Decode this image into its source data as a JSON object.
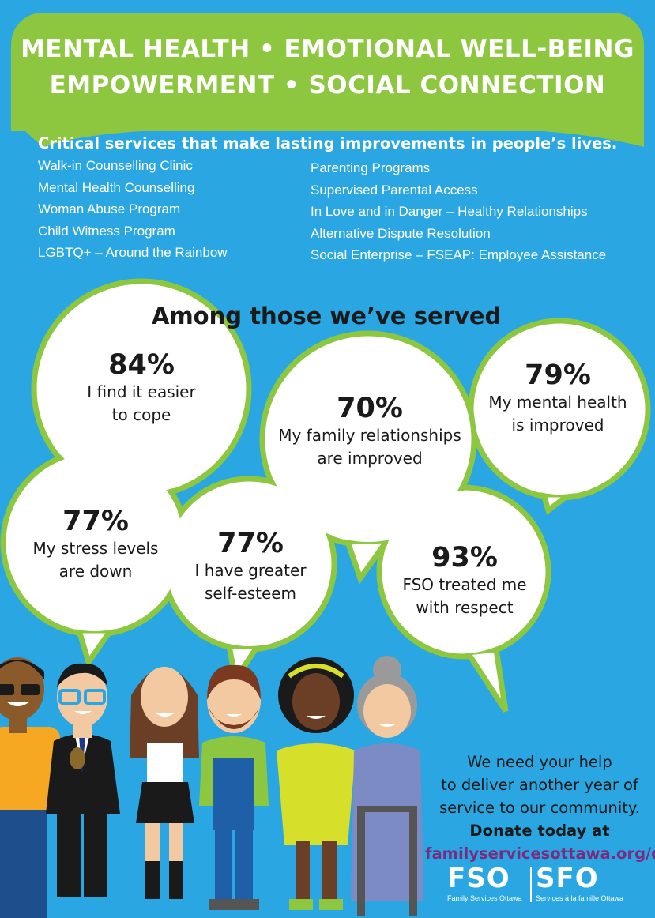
{
  "banner": {
    "line1": "MENTAL HEALTH • EMOTIONAL WELL-BEING",
    "line2": "EMPOWERMENT • SOCIAL CONNECTION"
  },
  "intro": "Critical services that make lasting improvements in people’s lives.",
  "services_left": [
    "Walk-in Counselling Clinic",
    "Mental Health Counselling",
    "Woman Abuse Program",
    "Child Witness Program",
    "LGBTQ+ – Around the Rainbow"
  ],
  "services_right": [
    "Parenting Programs",
    "Supervised Parental Access",
    "In Love and in Danger – Healthy Relationships",
    "Alternative Dispute Resolution",
    "Social Enterprise – FSEAP: Employee Assistance"
  ],
  "stats_heading": "Among those we’ve served",
  "stats": [
    {
      "pct": "84%",
      "line1": "I find it easier",
      "line2": "to cope"
    },
    {
      "pct": "70%",
      "line1": "My family relationships",
      "line2": "are improved"
    },
    {
      "pct": "79%",
      "line1": "My mental health",
      "line2": "is improved"
    },
    {
      "pct": "77%",
      "line1": "My stress levels",
      "line2": "are down"
    },
    {
      "pct": "77%",
      "line1": "I have greater",
      "line2": "self-esteem"
    },
    {
      "pct": "93%",
      "line1": "FSO treated me",
      "line2": "with respect"
    }
  ],
  "cta": {
    "line1": "We need your help",
    "line2": "to deliver another year of",
    "line3": "service to our community.",
    "line4": "Donate today at",
    "url": "familyservicesottawa.org/donate"
  },
  "logo": {
    "fso": "FSO",
    "sfo": "SFO",
    "fso_sub": "Family Services Ottawa",
    "sfo_sub": "Services à la famille Ottawa"
  },
  "colors": {
    "background": "#2aa7e2",
    "green": "#8dc63f",
    "purple": "#7b2b7f"
  }
}
